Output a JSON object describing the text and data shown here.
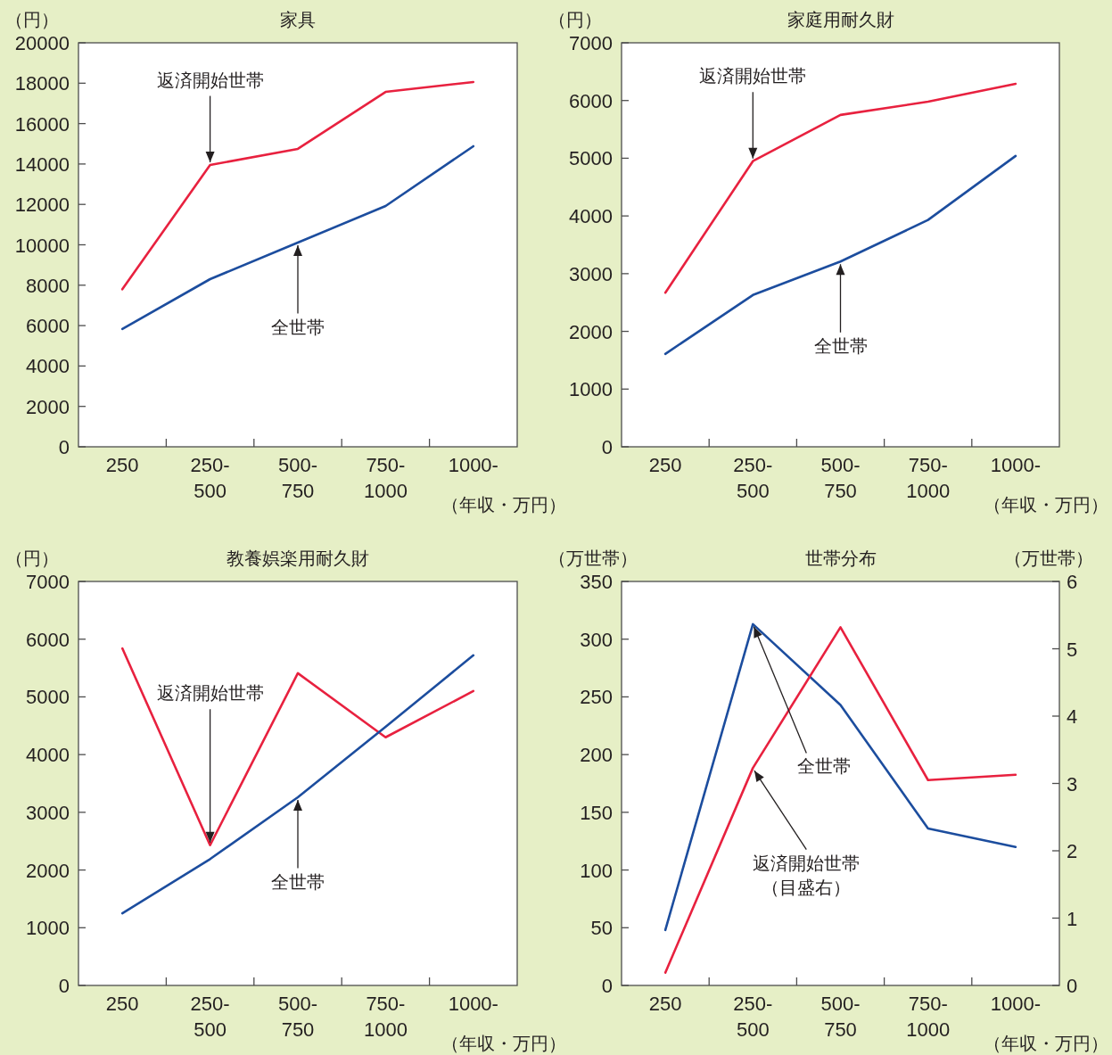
{
  "chart_data": [
    {
      "type": "line",
      "title": "家具",
      "ylabel": "（円）",
      "xlabel": "（年収・万円）",
      "categories": [
        "250",
        "250-500",
        "500-750",
        "750-1000",
        "1000-"
      ],
      "ylim": [
        0,
        20000
      ],
      "yticks": [
        0,
        2000,
        4000,
        6000,
        8000,
        10000,
        12000,
        14000,
        16000,
        18000,
        20000
      ],
      "series": [
        {
          "color": "#e8213f",
          "values": [
            7800,
            13950,
            14750,
            17570,
            18060
          ]
        },
        {
          "color": "#1c4d9e",
          "values": [
            5830,
            8300,
            10110,
            11920,
            14880
          ]
        }
      ],
      "annotations": [
        {
          "text": "返済開始世帯",
          "x": "250-500",
          "y": 13950
        },
        {
          "text": "全世帯",
          "x": "500-750",
          "y": 10110
        }
      ]
    },
    {
      "type": "line",
      "title": "家庭用耐久財",
      "ylabel": "（円）",
      "xlabel": "（年収・万円）",
      "categories": [
        "250",
        "250-500",
        "500-750",
        "750-1000",
        "1000-"
      ],
      "ylim": [
        0,
        7000
      ],
      "yticks": [
        0,
        1000,
        2000,
        3000,
        4000,
        5000,
        6000,
        7000
      ],
      "series": [
        {
          "color": "#e8213f",
          "values": [
            2670,
            4950,
            5750,
            5980,
            6290
          ]
        },
        {
          "color": "#1c4d9e",
          "values": [
            1610,
            2630,
            3210,
            3930,
            5040
          ]
        }
      ],
      "annotations": [
        {
          "text": "返済開始世帯",
          "x": "250-500",
          "y": 4950
        },
        {
          "text": "全世帯",
          "x": "500-750",
          "y": 3210
        }
      ]
    },
    {
      "type": "line",
      "title": "教養娯楽用耐久財",
      "ylabel": "（円）",
      "xlabel": "（年収・万円）",
      "categories": [
        "250",
        "250-500",
        "500-750",
        "750-1000",
        "1000-"
      ],
      "ylim": [
        0,
        7000
      ],
      "yticks": [
        0,
        1000,
        2000,
        3000,
        4000,
        5000,
        6000,
        7000
      ],
      "series": [
        {
          "color": "#e8213f",
          "values": [
            5840,
            2430,
            5410,
            4300,
            5100
          ]
        },
        {
          "color": "#1c4d9e",
          "values": [
            1250,
            2190,
            3260,
            4480,
            5720
          ]
        }
      ],
      "annotations": [
        {
          "text": "返済開始世帯",
          "x": "250-500",
          "y": 2430
        },
        {
          "text": "全世帯",
          "x": "500-750",
          "y": 3260
        }
      ]
    },
    {
      "type": "line",
      "title": "世帯分布",
      "ylabel": "（万世帯）",
      "y2label": "（万世帯）",
      "xlabel": "（年収・万円）",
      "categories": [
        "250",
        "250-500",
        "500-750",
        "750-1000",
        "1000-"
      ],
      "ylim": [
        0,
        350
      ],
      "yticks": [
        0,
        50,
        100,
        150,
        200,
        250,
        300,
        350
      ],
      "y2lim": [
        0,
        6
      ],
      "y2ticks": [
        0,
        1,
        2,
        3,
        4,
        5,
        6
      ],
      "series": [
        {
          "color": "#1c4d9e",
          "values": [
            48,
            313,
            243,
            136,
            120
          ]
        },
        {
          "color": "#e8213f",
          "axis": "y2",
          "values": [
            0.19,
            3.23,
            5.32,
            3.05,
            3.13
          ]
        }
      ],
      "annotations": [
        {
          "text": "全世帯",
          "x": "250-500",
          "y": 313
        },
        {
          "text": "返済開始世帯（目盛右）",
          "x": "250-500",
          "y": 188
        }
      ]
    }
  ]
}
